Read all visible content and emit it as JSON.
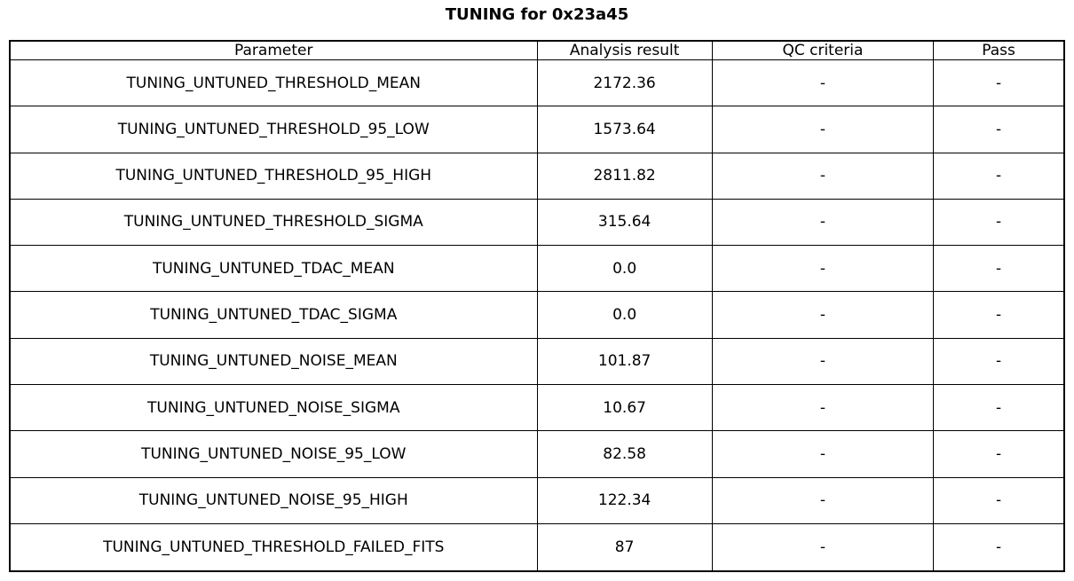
{
  "title": "TUNING for 0x23a45",
  "chart_data": {
    "type": "table",
    "title": "TUNING for 0x23a45",
    "columns": [
      "Parameter",
      "Analysis result",
      "QC criteria",
      "Pass"
    ],
    "rows": [
      [
        "TUNING_UNTUNED_THRESHOLD_MEAN",
        "2172.36",
        "-",
        "-"
      ],
      [
        "TUNING_UNTUNED_THRESHOLD_95_LOW",
        "1573.64",
        "-",
        "-"
      ],
      [
        "TUNING_UNTUNED_THRESHOLD_95_HIGH",
        "2811.82",
        "-",
        "-"
      ],
      [
        "TUNING_UNTUNED_THRESHOLD_SIGMA",
        "315.64",
        "-",
        "-"
      ],
      [
        "TUNING_UNTUNED_TDAC_MEAN",
        "0.0",
        "-",
        "-"
      ],
      [
        "TUNING_UNTUNED_TDAC_SIGMA",
        "0.0",
        "-",
        "-"
      ],
      [
        "TUNING_UNTUNED_NOISE_MEAN",
        "101.87",
        "-",
        "-"
      ],
      [
        "TUNING_UNTUNED_NOISE_SIGMA",
        "10.67",
        "-",
        "-"
      ],
      [
        "TUNING_UNTUNED_NOISE_95_LOW",
        "82.58",
        "-",
        "-"
      ],
      [
        "TUNING_UNTUNED_NOISE_95_HIGH",
        "122.34",
        "-",
        "-"
      ],
      [
        "TUNING_UNTUNED_THRESHOLD_FAILED_FITS",
        "87",
        "-",
        "-"
      ]
    ],
    "layout": {
      "grid": true,
      "border_color": "#000000",
      "background": "#ffffff",
      "text_color": "#000000"
    }
  }
}
